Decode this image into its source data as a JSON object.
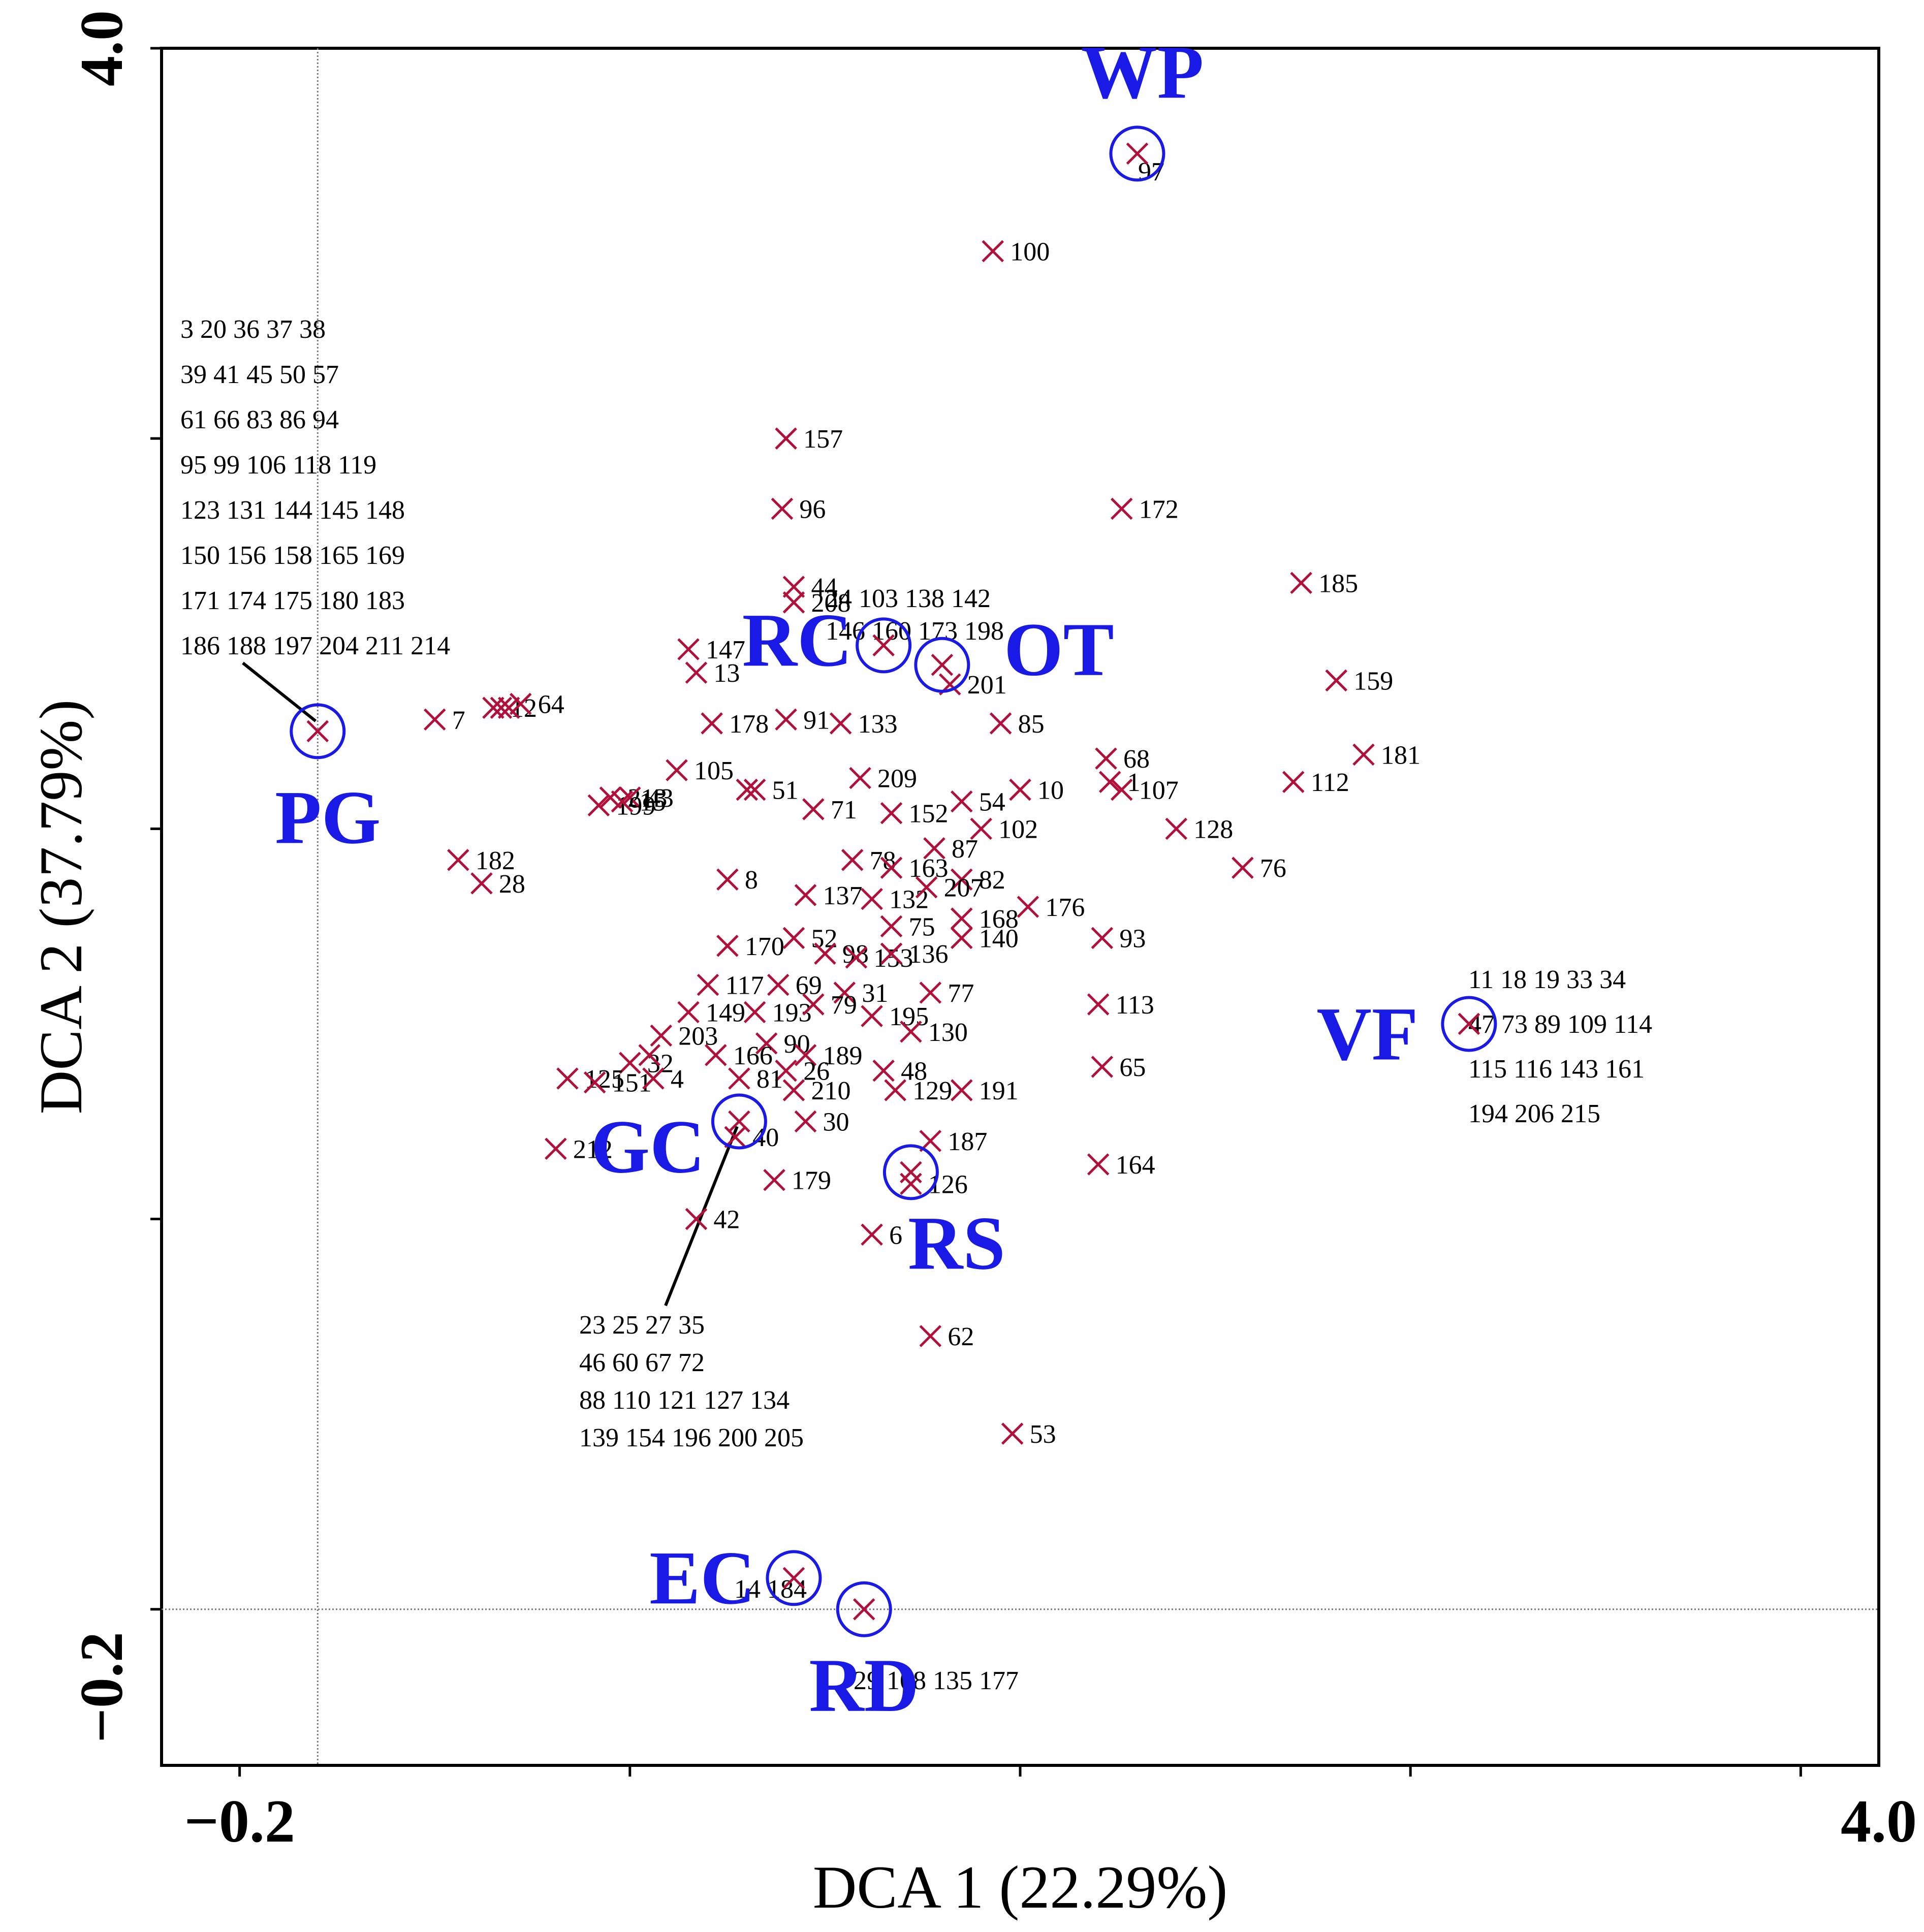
{
  "chart_data": {
    "type": "scatter",
    "xlabel": "DCA 1 (22.29%)",
    "ylabel": "DCA 2 (37.79%)",
    "xlim": [
      -0.4,
      4.0
    ],
    "ylim": [
      -0.4,
      4.0
    ],
    "x_tick_labels": [
      {
        "v": -0.2,
        "t": "−0.2"
      },
      {
        "v": 4.0,
        "t": "4.0"
      }
    ],
    "y_tick_labels": [
      {
        "v": -0.2,
        "t": "−0.2"
      },
      {
        "v": 4.0,
        "t": "4.0"
      }
    ],
    "x_ticks": [
      -0.2,
      0.8,
      1.8,
      2.8,
      3.8
    ],
    "y_ticks": [
      0.0,
      1.0,
      2.0,
      3.0,
      4.0
    ],
    "ref_lines": {
      "x": 0.0,
      "y": 0.0
    },
    "marker_color": "#b0103a",
    "group_color": "#1a1ae6",
    "groups": [
      {
        "name": "WP",
        "x": 2.1,
        "y": 3.73
      },
      {
        "name": "RC",
        "x": 1.45,
        "y": 2.47
      },
      {
        "name": "OT",
        "x": 1.6,
        "y": 2.42
      },
      {
        "name": "PG",
        "x": 0.0,
        "y": 2.25
      },
      {
        "name": "VF",
        "x": 2.95,
        "y": 1.5
      },
      {
        "name": "GC",
        "x": 1.08,
        "y": 1.25
      },
      {
        "name": "RS",
        "x": 1.52,
        "y": 1.12
      },
      {
        "name": "EC",
        "x": 1.22,
        "y": 0.08
      },
      {
        "name": "RD",
        "x": 1.4,
        "y": 0.0
      }
    ],
    "group_lists": [
      {
        "name": "PG",
        "lines": [
          "3 20 36 37 38",
          "39 41 45 50 57",
          "61 66 83 86 94",
          "95 99 106 118 119",
          "123 131 144 145 148",
          "150 156 158 165 169",
          "171 174 175 180 183",
          "186 188 197 204 211 214"
        ]
      },
      {
        "name": "GC",
        "lines": [
          "23 25 27 35",
          "46 60 67 72",
          "88 110 121 127 134",
          "139 154 196 200 205"
        ]
      },
      {
        "name": "VF",
        "lines": [
          "11 18 19 33 34",
          "47 73 89 109 114",
          "115 116 143 161",
          "194 206 215"
        ]
      },
      {
        "name": "RC",
        "lines": [
          "24 103 138 142",
          "146 160 173 198"
        ]
      },
      {
        "name": "EC",
        "lines": [
          "14 184"
        ]
      },
      {
        "name": "RD",
        "lines": [
          "29 108 135 177"
        ]
      },
      {
        "name": "WP",
        "lines": [
          "97"
        ]
      }
    ],
    "points": [
      {
        "x": 1.73,
        "y": 3.48,
        "label": "100"
      },
      {
        "x": 1.2,
        "y": 3.0,
        "label": "157"
      },
      {
        "x": 1.19,
        "y": 2.82,
        "label": "96"
      },
      {
        "x": 2.06,
        "y": 2.82,
        "label": "172"
      },
      {
        "x": 1.22,
        "y": 2.62,
        "label": "44"
      },
      {
        "x": 1.22,
        "y": 2.58,
        "label": "208"
      },
      {
        "x": 2.52,
        "y": 2.63,
        "label": "185"
      },
      {
        "x": 0.95,
        "y": 2.46,
        "label": "147"
      },
      {
        "x": 0.97,
        "y": 2.4,
        "label": "13"
      },
      {
        "x": 1.62,
        "y": 2.37,
        "label": "201"
      },
      {
        "x": 2.61,
        "y": 2.38,
        "label": "159"
      },
      {
        "x": 0.3,
        "y": 2.28,
        "label": "7"
      },
      {
        "x": 0.45,
        "y": 2.31,
        "label": "12"
      },
      {
        "x": 0.47,
        "y": 2.31,
        "label": ""
      },
      {
        "x": 0.49,
        "y": 2.31,
        "label": ""
      },
      {
        "x": 0.52,
        "y": 2.32,
        "label": "64"
      },
      {
        "x": 1.2,
        "y": 2.28,
        "label": "91"
      },
      {
        "x": 1.01,
        "y": 2.27,
        "label": "178"
      },
      {
        "x": 1.34,
        "y": 2.27,
        "label": "133"
      },
      {
        "x": 1.75,
        "y": 2.27,
        "label": "85"
      },
      {
        "x": 2.02,
        "y": 2.18,
        "label": "68"
      },
      {
        "x": 2.68,
        "y": 2.19,
        "label": "181"
      },
      {
        "x": 0.92,
        "y": 2.15,
        "label": "105"
      },
      {
        "x": 1.39,
        "y": 2.13,
        "label": "209"
      },
      {
        "x": 1.12,
        "y": 2.1,
        "label": "51"
      },
      {
        "x": 1.1,
        "y": 2.1,
        "label": ""
      },
      {
        "x": 1.8,
        "y": 2.1,
        "label": "10"
      },
      {
        "x": 2.03,
        "y": 2.12,
        "label": "1"
      },
      {
        "x": 2.06,
        "y": 2.1,
        "label": "107"
      },
      {
        "x": 2.5,
        "y": 2.12,
        "label": "112"
      },
      {
        "x": 0.75,
        "y": 2.08,
        "label": "213"
      },
      {
        "x": 0.8,
        "y": 2.08,
        "label": "43"
      },
      {
        "x": 0.72,
        "y": 2.06,
        "label": "199"
      },
      {
        "x": 0.78,
        "y": 2.07,
        "label": "15"
      },
      {
        "x": 1.27,
        "y": 2.05,
        "label": "71"
      },
      {
        "x": 1.47,
        "y": 2.04,
        "label": "152"
      },
      {
        "x": 1.65,
        "y": 2.07,
        "label": "54"
      },
      {
        "x": 1.7,
        "y": 2.0,
        "label": "102"
      },
      {
        "x": 2.2,
        "y": 2.0,
        "label": "128"
      },
      {
        "x": 0.36,
        "y": 1.92,
        "label": "182"
      },
      {
        "x": 0.42,
        "y": 1.86,
        "label": "28"
      },
      {
        "x": 1.05,
        "y": 1.87,
        "label": "8"
      },
      {
        "x": 1.37,
        "y": 1.92,
        "label": "78"
      },
      {
        "x": 1.47,
        "y": 1.9,
        "label": "163"
      },
      {
        "x": 1.58,
        "y": 1.95,
        "label": "87"
      },
      {
        "x": 1.65,
        "y": 1.87,
        "label": "82"
      },
      {
        "x": 2.37,
        "y": 1.9,
        "label": "76"
      },
      {
        "x": 1.25,
        "y": 1.83,
        "label": "137"
      },
      {
        "x": 1.42,
        "y": 1.82,
        "label": "132"
      },
      {
        "x": 1.56,
        "y": 1.85,
        "label": "207"
      },
      {
        "x": 1.82,
        "y": 1.8,
        "label": "176"
      },
      {
        "x": 1.65,
        "y": 1.77,
        "label": "168"
      },
      {
        "x": 1.47,
        "y": 1.75,
        "label": "75"
      },
      {
        "x": 1.05,
        "y": 1.7,
        "label": "170"
      },
      {
        "x": 1.22,
        "y": 1.72,
        "label": "52"
      },
      {
        "x": 1.3,
        "y": 1.68,
        "label": "98"
      },
      {
        "x": 1.38,
        "y": 1.67,
        "label": "153"
      },
      {
        "x": 1.47,
        "y": 1.68,
        "label": "136"
      },
      {
        "x": 1.65,
        "y": 1.72,
        "label": "140"
      },
      {
        "x": 2.01,
        "y": 1.72,
        "label": "93"
      },
      {
        "x": 1.0,
        "y": 1.6,
        "label": "117"
      },
      {
        "x": 1.18,
        "y": 1.6,
        "label": "69"
      },
      {
        "x": 1.35,
        "y": 1.58,
        "label": "31"
      },
      {
        "x": 1.57,
        "y": 1.58,
        "label": "77"
      },
      {
        "x": 0.95,
        "y": 1.53,
        "label": "149"
      },
      {
        "x": 1.12,
        "y": 1.53,
        "label": "193"
      },
      {
        "x": 1.27,
        "y": 1.55,
        "label": "79"
      },
      {
        "x": 1.42,
        "y": 1.52,
        "label": "195"
      },
      {
        "x": 2.0,
        "y": 1.55,
        "label": "113"
      },
      {
        "x": 0.88,
        "y": 1.47,
        "label": "203"
      },
      {
        "x": 1.15,
        "y": 1.45,
        "label": "90"
      },
      {
        "x": 1.25,
        "y": 1.42,
        "label": "189"
      },
      {
        "x": 1.52,
        "y": 1.48,
        "label": "130"
      },
      {
        "x": 0.8,
        "y": 1.4,
        "label": "32"
      },
      {
        "x": 0.85,
        "y": 1.42,
        "label": ""
      },
      {
        "x": 1.02,
        "y": 1.42,
        "label": "166"
      },
      {
        "x": 1.2,
        "y": 1.38,
        "label": "26"
      },
      {
        "x": 1.45,
        "y": 1.38,
        "label": "48"
      },
      {
        "x": 2.01,
        "y": 1.39,
        "label": "65"
      },
      {
        "x": 0.64,
        "y": 1.36,
        "label": "125"
      },
      {
        "x": 0.71,
        "y": 1.35,
        "label": "151"
      },
      {
        "x": 0.86,
        "y": 1.36,
        "label": "4"
      },
      {
        "x": 1.08,
        "y": 1.36,
        "label": "81"
      },
      {
        "x": 1.22,
        "y": 1.33,
        "label": "210"
      },
      {
        "x": 1.48,
        "y": 1.33,
        "label": "129"
      },
      {
        "x": 1.65,
        "y": 1.33,
        "label": "191"
      },
      {
        "x": 1.25,
        "y": 1.25,
        "label": "30"
      },
      {
        "x": 1.07,
        "y": 1.21,
        "label": "40"
      },
      {
        "x": 1.57,
        "y": 1.2,
        "label": "187"
      },
      {
        "x": 0.61,
        "y": 1.18,
        "label": "212"
      },
      {
        "x": 1.17,
        "y": 1.1,
        "label": "179"
      },
      {
        "x": 1.52,
        "y": 1.09,
        "label": "126"
      },
      {
        "x": 2.0,
        "y": 1.14,
        "label": "164"
      },
      {
        "x": 0.97,
        "y": 1.0,
        "label": "42"
      },
      {
        "x": 1.42,
        "y": 0.96,
        "label": "6"
      },
      {
        "x": 1.57,
        "y": 0.7,
        "label": "62"
      },
      {
        "x": 1.78,
        "y": 0.45,
        "label": "53"
      }
    ]
  }
}
